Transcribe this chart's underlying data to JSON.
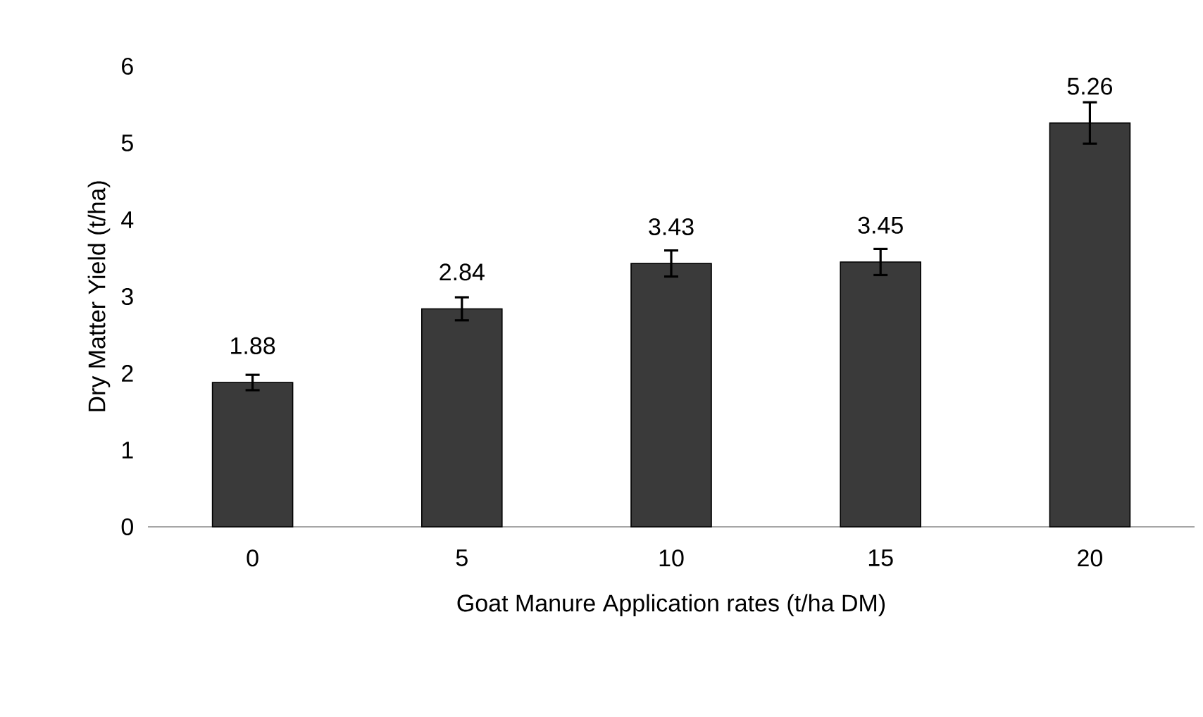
{
  "chart_data": {
    "type": "bar",
    "xlabel": "Goat Manure Application rates (t/ha DM)",
    "ylabel": "Dry Matter Yield (t/ha)",
    "categories": [
      "0",
      "5",
      "10",
      "15",
      "20"
    ],
    "values": [
      1.88,
      2.84,
      3.43,
      3.45,
      5.26
    ],
    "errors": [
      0.1,
      0.15,
      0.17,
      0.17,
      0.27
    ],
    "color": "#3a3a3a",
    "data_labels": true,
    "ylim": [
      0,
      6
    ],
    "yticks": [
      0,
      1,
      2,
      3,
      4,
      5,
      6
    ]
  }
}
